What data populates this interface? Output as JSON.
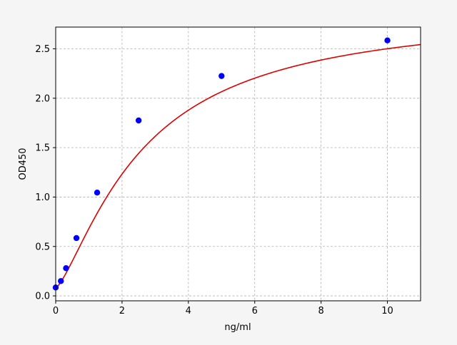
{
  "chart_data": {
    "type": "scatter",
    "title": "",
    "xlabel": "ng/ml",
    "ylabel": "OD450",
    "xlim": [
      0,
      11
    ],
    "ylim": [
      -0.05,
      2.72
    ],
    "x_ticks": [
      0,
      2,
      4,
      6,
      8,
      10
    ],
    "x_tick_labels": [
      "0",
      "2",
      "4",
      "6",
      "8",
      "10"
    ],
    "y_ticks": [
      0.0,
      0.5,
      1.0,
      1.5,
      2.0,
      2.5
    ],
    "y_tick_labels": [
      "0.0",
      "0.5",
      "1.0",
      "1.5",
      "2.0",
      "2.5"
    ],
    "grid": true,
    "legend": "none",
    "points": {
      "x": [
        0,
        0.156,
        0.312,
        0.625,
        1.25,
        2.5,
        5,
        10
      ],
      "y": [
        0.085,
        0.15,
        0.28,
        0.585,
        1.045,
        1.775,
        2.225,
        2.585
      ],
      "color": "#0000ff"
    },
    "fit_curve": {
      "model": "4PL",
      "A": 0.08,
      "B": 1.35,
      "C": 2.63,
      "D": 2.9,
      "color": "#dd0000"
    }
  }
}
